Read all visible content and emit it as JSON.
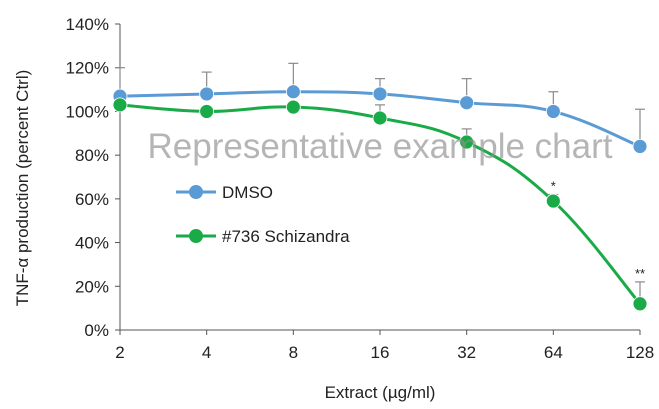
{
  "chart_data": {
    "type": "line",
    "title": "",
    "xlabel": "Extract (µg/ml)",
    "ylabel": "TNF-α production (percent Ctrl)",
    "categories": [
      "2",
      "4",
      "8",
      "16",
      "32",
      "64",
      "128"
    ],
    "ylim": [
      0,
      140
    ],
    "yticks": [
      "0%",
      "20%",
      "40%",
      "60%",
      "80%",
      "100%",
      "120%",
      "140%"
    ],
    "grid": false,
    "legend_position": "center-left",
    "watermark": "Representative example chart",
    "series": [
      {
        "name": "DMSO",
        "color": "#5b9bd5",
        "values": [
          107,
          108,
          109,
          108,
          104,
          100,
          84
        ],
        "error": [
          13,
          10,
          13,
          7,
          11,
          9,
          17
        ],
        "annotations": [
          "",
          "",
          "",
          "",
          "",
          "",
          ""
        ]
      },
      {
        "name": "#736 Schizandra",
        "color": "#1aab48",
        "values": [
          103,
          100,
          102,
          97,
          86,
          59,
          12
        ],
        "error": [
          0,
          0,
          0,
          6,
          6,
          3,
          10
        ],
        "annotations": [
          "",
          "",
          "",
          "",
          "",
          "*",
          "**"
        ]
      }
    ]
  }
}
